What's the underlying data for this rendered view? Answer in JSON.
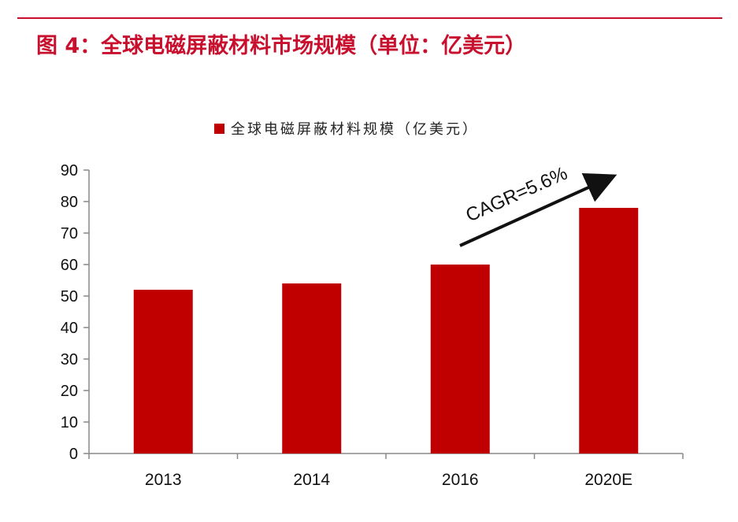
{
  "figure_title": "图 4：全球电磁屏蔽材料市场规模（单位：亿美元）",
  "chart_data": {
    "type": "bar",
    "categories": [
      "2013",
      "2014",
      "2016",
      "2020E"
    ],
    "series": [
      {
        "name": "全球电磁屏蔽材料规模（亿美元）",
        "values": [
          52,
          54,
          60,
          78
        ]
      }
    ],
    "ylim": [
      0,
      90
    ],
    "yticks": [
      "0",
      "10",
      "20",
      "30",
      "40",
      "50",
      "60",
      "70",
      "80",
      "90"
    ],
    "annotation": "CAGR=5.6%",
    "legend_position": "top-center",
    "grid": false,
    "colors": {
      "bar": "#c00000",
      "title": "#c8102e",
      "rule": "#c8102e"
    }
  }
}
